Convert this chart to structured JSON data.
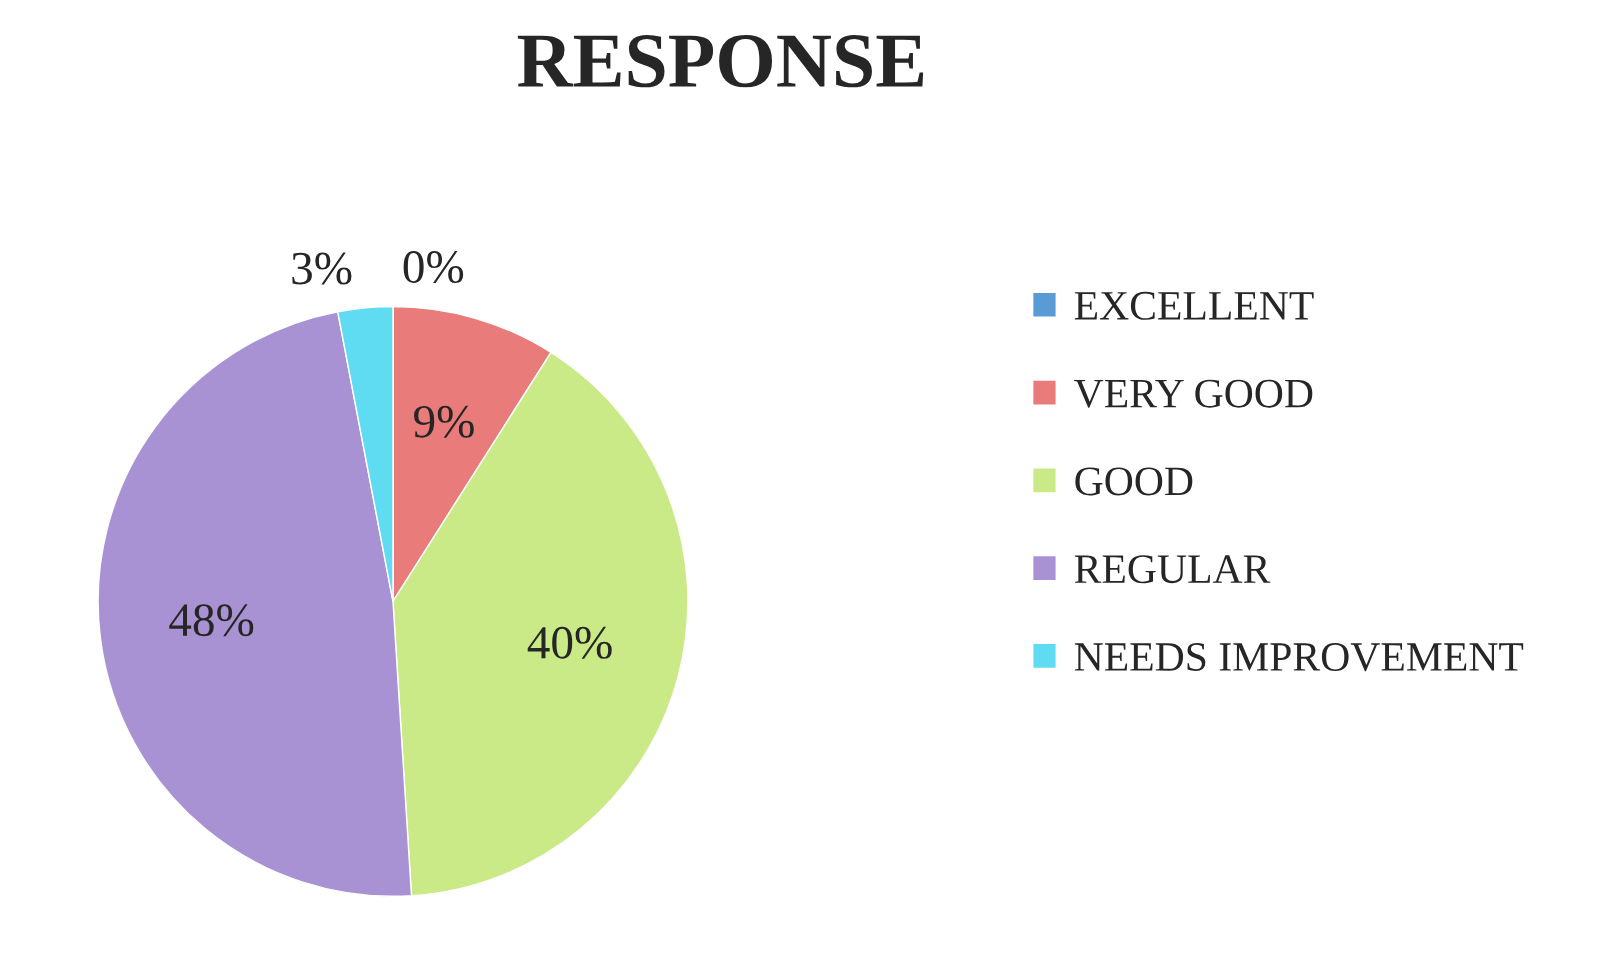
{
  "chart_data": {
    "type": "pie",
    "title": "RESPONSE",
    "categories": [
      "EXCELLENT",
      "VERY GOOD",
      "GOOD",
      "REGULAR",
      "NEEDS IMPROVEMENT"
    ],
    "values": [
      0,
      9,
      40,
      48,
      3
    ],
    "value_labels": [
      "0%",
      "9%",
      "40%",
      "48%",
      "3%"
    ],
    "colors": [
      "#5b9bd5",
      "#ea7b7b",
      "#c9ea86",
      "#a992d4",
      "#5fdcf2"
    ],
    "legend": "right"
  }
}
